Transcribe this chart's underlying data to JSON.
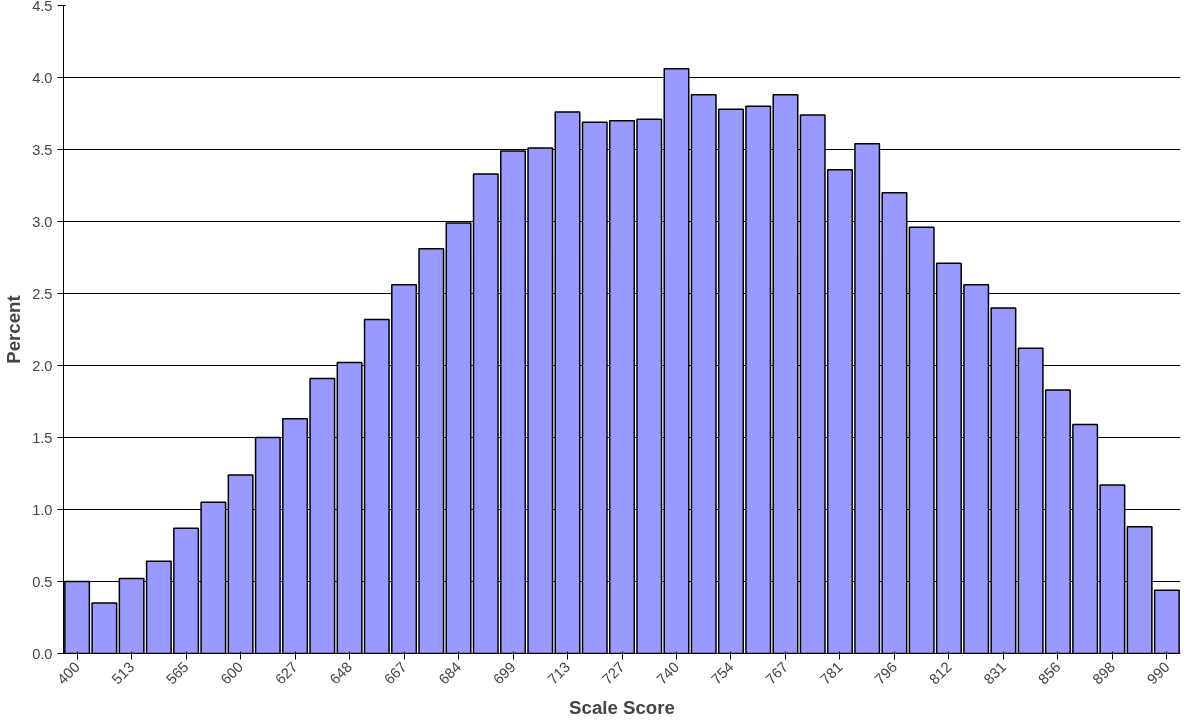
{
  "chart_data": {
    "type": "bar",
    "xlabel": "Scale Score",
    "ylabel": "Percent",
    "categories": [
      "400",
      null,
      "513",
      null,
      "565",
      null,
      "600",
      null,
      "627",
      null,
      "648",
      null,
      "667",
      null,
      "684",
      null,
      "699",
      null,
      "713",
      null,
      "727",
      null,
      "740",
      null,
      "754",
      null,
      "767",
      null,
      "781",
      null,
      "796",
      null,
      "812",
      null,
      "831",
      null,
      "856",
      null,
      "898",
      null,
      "990"
    ],
    "values": [
      0.5,
      0.35,
      0.52,
      0.64,
      0.87,
      1.05,
      1.24,
      1.5,
      1.63,
      1.91,
      2.02,
      2.32,
      2.56,
      2.81,
      2.99,
      3.33,
      3.49,
      3.51,
      3.76,
      3.69,
      3.7,
      3.71,
      4.06,
      3.88,
      3.78,
      3.8,
      3.88,
      3.74,
      3.36,
      3.54,
      3.2,
      2.96,
      2.71,
      2.56,
      2.4,
      2.12,
      1.83,
      1.59,
      1.17,
      0.88,
      0.44
    ],
    "color": "#9999ff",
    "ylim": [
      0,
      4.5
    ],
    "yticks": [
      {
        "value": 0,
        "label": "0.0"
      },
      {
        "value": 0.5,
        "label": "0.5"
      },
      {
        "value": 1,
        "label": "1.0"
      },
      {
        "value": 1.5,
        "label": "1.5"
      },
      {
        "value": 2,
        "label": "2.0"
      },
      {
        "value": 2.5,
        "label": "2.5"
      },
      {
        "value": 3,
        "label": "3.0"
      },
      {
        "value": 3.5,
        "label": "3.5"
      },
      {
        "value": 4,
        "label": "4.0"
      },
      {
        "value": 4.5,
        "label": "4.5"
      }
    ],
    "grid": "y"
  }
}
